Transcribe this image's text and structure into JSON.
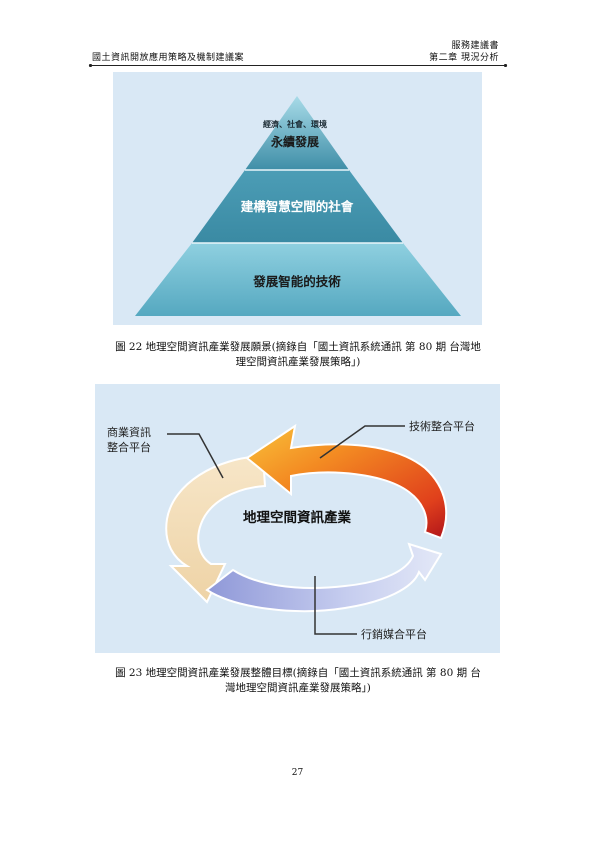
{
  "header": {
    "right_top": "服務建議書",
    "left": "國土資訊開放應用策略及機制建議案",
    "right": "第二章  現況分析"
  },
  "figure1": {
    "tier_top_small": "經濟、社會、環境",
    "tier_top": "永續發展",
    "tier_middle": "建構智慧空間的社會",
    "tier_bottom": "發展智能的技術"
  },
  "caption1": {
    "line1": "圖  22 地理空間資訊產業發展願景(摘錄自「國土資訊系統通訊  第 80 期  台灣地",
    "line2": "理空間資訊產業發展策略」)"
  },
  "figure2": {
    "center": "地理空間資訊產業",
    "label_left_1": "商業資訊",
    "label_left_2": "整合平台",
    "label_right": "技術整合平台",
    "label_bottom": "行銷媒合平台"
  },
  "caption2": {
    "line1": "圖  23 地理空間資訊產業發展整體目標(摘錄自「國土資訊系統通訊  第 80 期  台",
    "line2": "灣地理空間資訊產業發展策略」)"
  },
  "page_number": "27",
  "colors": {
    "figure_bg": "#d9e8f5",
    "pyramid_dark": "#2f7f9a",
    "pyramid_light": "#7cc4d6",
    "arrow_orange": "#f07a1c",
    "arrow_red": "#c8171c",
    "arrow_cream": "#f3dcb4",
    "arrow_blue": "#a9b4e6"
  }
}
